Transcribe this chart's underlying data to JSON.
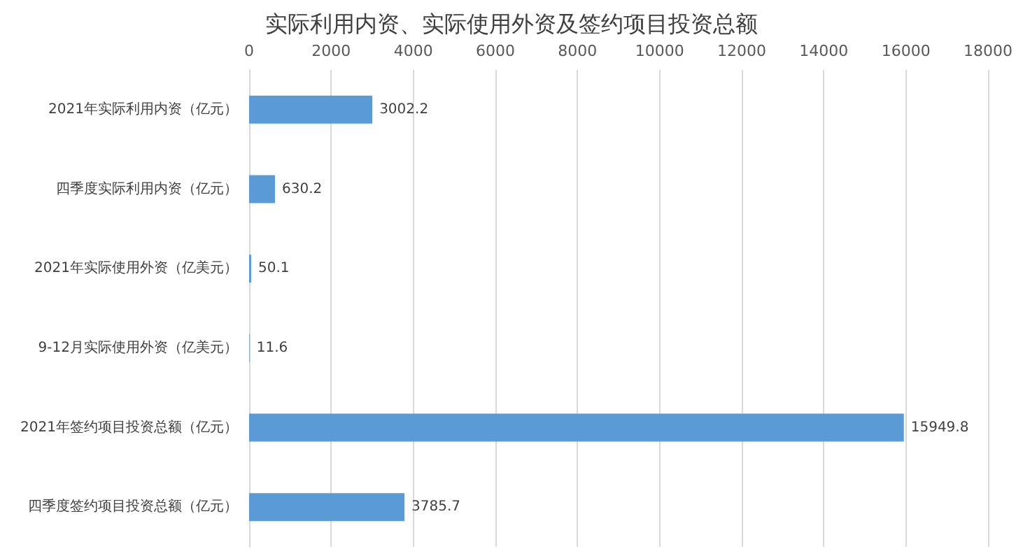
{
  "chart_data": {
    "type": "bar",
    "orientation": "horizontal",
    "title": "实际利用内资、实际使用外资及签约项目投资总额",
    "categories": [
      "2021年实际利用内资（亿元）",
      "四季度实际利用内资（亿元）",
      "2021年实际使用外资（亿美元）",
      "9-12月实际使用外资（亿美元）",
      "2021年签约项目投资总额（亿元）",
      "四季度签约项目投资总额（亿元）"
    ],
    "values": [
      3002.2,
      630.2,
      50.1,
      11.6,
      15949.8,
      3785.7
    ],
    "color": "#5b9bd5",
    "xlim": [
      0,
      18000
    ],
    "xticks": [
      0,
      2000,
      4000,
      6000,
      8000,
      10000,
      12000,
      14000,
      16000,
      18000
    ],
    "grid": "x",
    "data_labels": true
  }
}
